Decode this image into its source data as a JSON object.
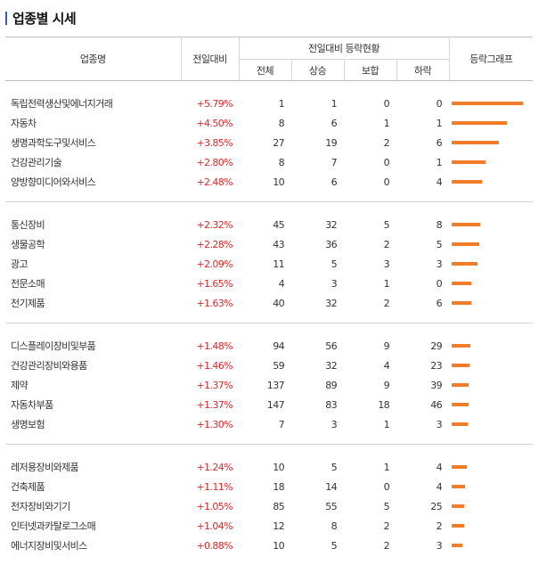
{
  "title": "업종별 시세",
  "colors": {
    "accent": "#2f5fb3",
    "up": "#d62b2b",
    "bar": "#f07c2a"
  },
  "headers": {
    "name": "업종명",
    "change": "전일대비",
    "group": "전일대비 등락현황",
    "total": "전체",
    "up": "상승",
    "flat": "보합",
    "down": "하락",
    "graph": "등락그래프"
  },
  "groups": [
    [
      {
        "name": "독립전력생산및에너지거래",
        "change": "+5.79%",
        "total": "1",
        "up": "1",
        "flat": "0",
        "down": "0",
        "bar": 1.0
      },
      {
        "name": "자동차",
        "change": "+4.50%",
        "total": "8",
        "up": "6",
        "flat": "1",
        "down": "1",
        "bar": 0.78
      },
      {
        "name": "생명과학도구및서비스",
        "change": "+3.85%",
        "total": "27",
        "up": "19",
        "flat": "2",
        "down": "6",
        "bar": 0.66
      },
      {
        "name": "건강관리기술",
        "change": "+2.80%",
        "total": "8",
        "up": "7",
        "flat": "0",
        "down": "1",
        "bar": 0.48
      },
      {
        "name": "양방향미디어와서비스",
        "change": "+2.48%",
        "total": "10",
        "up": "6",
        "flat": "0",
        "down": "4",
        "bar": 0.43
      }
    ],
    [
      {
        "name": "통신장비",
        "change": "+2.32%",
        "total": "45",
        "up": "32",
        "flat": "5",
        "down": "8",
        "bar": 0.4
      },
      {
        "name": "생물공학",
        "change": "+2.28%",
        "total": "43",
        "up": "36",
        "flat": "2",
        "down": "5",
        "bar": 0.39
      },
      {
        "name": "광고",
        "change": "+2.09%",
        "total": "11",
        "up": "5",
        "flat": "3",
        "down": "3",
        "bar": 0.36
      },
      {
        "name": "전문소매",
        "change": "+1.65%",
        "total": "4",
        "up": "3",
        "flat": "1",
        "down": "0",
        "bar": 0.28
      },
      {
        "name": "전기제품",
        "change": "+1.63%",
        "total": "40",
        "up": "32",
        "flat": "2",
        "down": "6",
        "bar": 0.28
      }
    ],
    [
      {
        "name": "디스플레이장비및부품",
        "change": "+1.48%",
        "total": "94",
        "up": "56",
        "flat": "9",
        "down": "29",
        "bar": 0.26
      },
      {
        "name": "건강관리장비와용품",
        "change": "+1.46%",
        "total": "59",
        "up": "32",
        "flat": "4",
        "down": "23",
        "bar": 0.25
      },
      {
        "name": "제약",
        "change": "+1.37%",
        "total": "137",
        "up": "89",
        "flat": "9",
        "down": "39",
        "bar": 0.24
      },
      {
        "name": "자동차부품",
        "change": "+1.37%",
        "total": "147",
        "up": "83",
        "flat": "18",
        "down": "46",
        "bar": 0.24
      },
      {
        "name": "생명보험",
        "change": "+1.30%",
        "total": "7",
        "up": "3",
        "flat": "1",
        "down": "3",
        "bar": 0.22
      }
    ],
    [
      {
        "name": "레저용장비와제품",
        "change": "+1.24%",
        "total": "10",
        "up": "5",
        "flat": "1",
        "down": "4",
        "bar": 0.21
      },
      {
        "name": "건축제품",
        "change": "+1.11%",
        "total": "18",
        "up": "14",
        "flat": "0",
        "down": "4",
        "bar": 0.19
      },
      {
        "name": "전자장비와기기",
        "change": "+1.05%",
        "total": "85",
        "up": "55",
        "flat": "5",
        "down": "25",
        "bar": 0.18
      },
      {
        "name": "인터넷과카탈로그소매",
        "change": "+1.04%",
        "total": "12",
        "up": "8",
        "flat": "2",
        "down": "2",
        "bar": 0.18
      },
      {
        "name": "에너지장비및서비스",
        "change": "+0.88%",
        "total": "10",
        "up": "5",
        "flat": "2",
        "down": "3",
        "bar": 0.15
      }
    ]
  ]
}
